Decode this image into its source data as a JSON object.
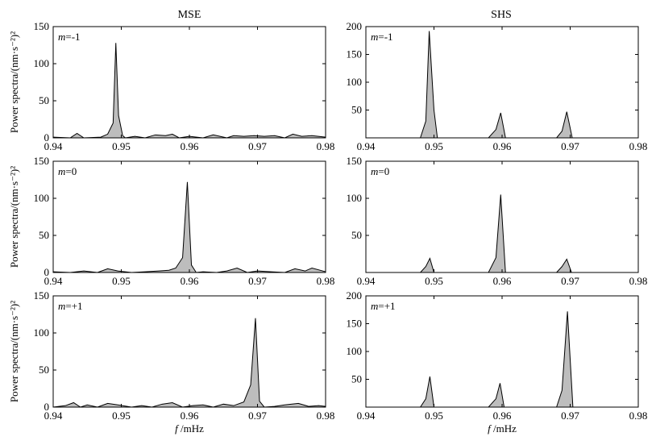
{
  "figure": {
    "column_titles": [
      "MSE",
      "SHS"
    ],
    "ylabel": "Power spectra/(nm·s⁻²)²",
    "xlabel": "f /mHz",
    "colors": {
      "fill": "#bdbdbd",
      "line": "#000000",
      "axes": "#000000"
    }
  },
  "chart_data": [
    {
      "type": "area",
      "panel": "MSE m=-1",
      "label_var": "m",
      "label_val": "=-1",
      "xlim": [
        0.94,
        0.98
      ],
      "ylim": [
        0,
        150
      ],
      "xticks": [
        "0.94",
        "0.95",
        "0.96",
        "0.97",
        "0.98"
      ],
      "yticks": [
        "0",
        "50",
        "100",
        "150"
      ],
      "x": [
        0.94,
        0.9425,
        0.9435,
        0.9445,
        0.947,
        0.948,
        0.9488,
        0.9492,
        0.9496,
        0.9502,
        0.9506,
        0.952,
        0.9535,
        0.955,
        0.9565,
        0.9575,
        0.9585,
        0.96,
        0.962,
        0.9635,
        0.9655,
        0.9665,
        0.968,
        0.9695,
        0.971,
        0.9725,
        0.974,
        0.9752,
        0.9765,
        0.978,
        0.98
      ],
      "y": [
        1,
        0,
        6,
        0,
        1,
        5,
        20,
        128,
        30,
        3,
        0,
        2,
        0,
        4,
        3,
        5,
        0,
        2,
        0,
        4,
        0,
        3,
        2,
        3,
        2,
        3,
        0,
        5,
        2,
        3,
        1
      ]
    },
    {
      "type": "area",
      "panel": "SHS m=-1",
      "label_var": "m",
      "label_val": "=-1",
      "xlim": [
        0.94,
        0.98
      ],
      "ylim": [
        0,
        200
      ],
      "xticks": [
        "0.94",
        "0.95",
        "0.96",
        "0.97",
        "0.98"
      ],
      "yticks": [
        "50",
        "100",
        "150",
        "200"
      ],
      "x": [
        0.94,
        0.948,
        0.9488,
        0.9493,
        0.95,
        0.9505,
        0.958,
        0.9591,
        0.9598,
        0.9605,
        0.968,
        0.9688,
        0.9695,
        0.9703,
        0.98
      ],
      "y": [
        0,
        0,
        30,
        192,
        50,
        0,
        0,
        15,
        45,
        0,
        0,
        12,
        47,
        0,
        0
      ]
    },
    {
      "type": "area",
      "panel": "MSE m=0",
      "label_var": "m",
      "label_val": "=0",
      "xlim": [
        0.94,
        0.98
      ],
      "ylim": [
        0,
        150
      ],
      "xticks": [
        "0.94",
        "0.95",
        "0.96",
        "0.97",
        "0.98"
      ],
      "yticks": [
        "0",
        "50",
        "100",
        "150"
      ],
      "x": [
        0.94,
        0.9425,
        0.9445,
        0.9465,
        0.948,
        0.9495,
        0.9515,
        0.9535,
        0.9555,
        0.957,
        0.958,
        0.959,
        0.9597,
        0.9603,
        0.961,
        0.962,
        0.964,
        0.9655,
        0.967,
        0.9685,
        0.97,
        0.972,
        0.974,
        0.9755,
        0.977,
        0.978,
        0.98
      ],
      "y": [
        1,
        0,
        2,
        0,
        5,
        2,
        0,
        1,
        2,
        3,
        6,
        20,
        122,
        10,
        0,
        1,
        0,
        2,
        6,
        0,
        2,
        1,
        0,
        5,
        2,
        6,
        1
      ]
    },
    {
      "type": "area",
      "panel": "SHS m=0",
      "label_var": "m",
      "label_val": "=0",
      "xlim": [
        0.94,
        0.98
      ],
      "ylim": [
        0,
        150
      ],
      "xticks": [
        "0.94",
        "0.95",
        "0.96",
        "0.97",
        "0.98"
      ],
      "yticks": [
        "50",
        "100",
        "150"
      ],
      "x": [
        0.94,
        0.948,
        0.9488,
        0.9494,
        0.95,
        0.958,
        0.9591,
        0.9598,
        0.9605,
        0.968,
        0.9688,
        0.9695,
        0.9702,
        0.98
      ],
      "y": [
        0,
        0,
        8,
        19,
        0,
        0,
        20,
        105,
        0,
        0,
        8,
        18,
        0,
        0
      ]
    },
    {
      "type": "area",
      "panel": "MSE m=+1",
      "label_var": "m",
      "label_val": "=+1",
      "xlim": [
        0.94,
        0.98
      ],
      "ylim": [
        0,
        150
      ],
      "xticks": [
        "0.94",
        "0.95",
        "0.96",
        "0.97",
        "0.98"
      ],
      "yticks": [
        "0",
        "50",
        "100",
        "150"
      ],
      "x": [
        0.94,
        0.9418,
        0.943,
        0.944,
        0.945,
        0.9465,
        0.948,
        0.9495,
        0.9515,
        0.953,
        0.9545,
        0.956,
        0.9575,
        0.959,
        0.9605,
        0.962,
        0.9635,
        0.965,
        0.9665,
        0.968,
        0.969,
        0.9697,
        0.9703,
        0.971,
        0.9725,
        0.974,
        0.976,
        0.9775,
        0.979,
        0.98
      ],
      "y": [
        0,
        2,
        6,
        0,
        3,
        0,
        5,
        3,
        0,
        2,
        0,
        4,
        6,
        0,
        2,
        3,
        0,
        4,
        2,
        7,
        30,
        120,
        8,
        0,
        1,
        3,
        5,
        1,
        2,
        1
      ]
    },
    {
      "type": "area",
      "panel": "SHS m=+1",
      "label_var": "m",
      "label_val": "=+1",
      "xlim": [
        0.94,
        0.98
      ],
      "ylim": [
        0,
        200
      ],
      "xticks": [
        "0.94",
        "0.95",
        "0.96",
        "0.97",
        "0.98"
      ],
      "yticks": [
        "50",
        "100",
        "150",
        "200"
      ],
      "x": [
        0.94,
        0.948,
        0.9488,
        0.9494,
        0.95,
        0.958,
        0.9591,
        0.9597,
        0.9603,
        0.968,
        0.9688,
        0.9696,
        0.9704,
        0.98
      ],
      "y": [
        0,
        0,
        15,
        55,
        0,
        0,
        15,
        43,
        0,
        0,
        30,
        172,
        0,
        0
      ]
    }
  ]
}
